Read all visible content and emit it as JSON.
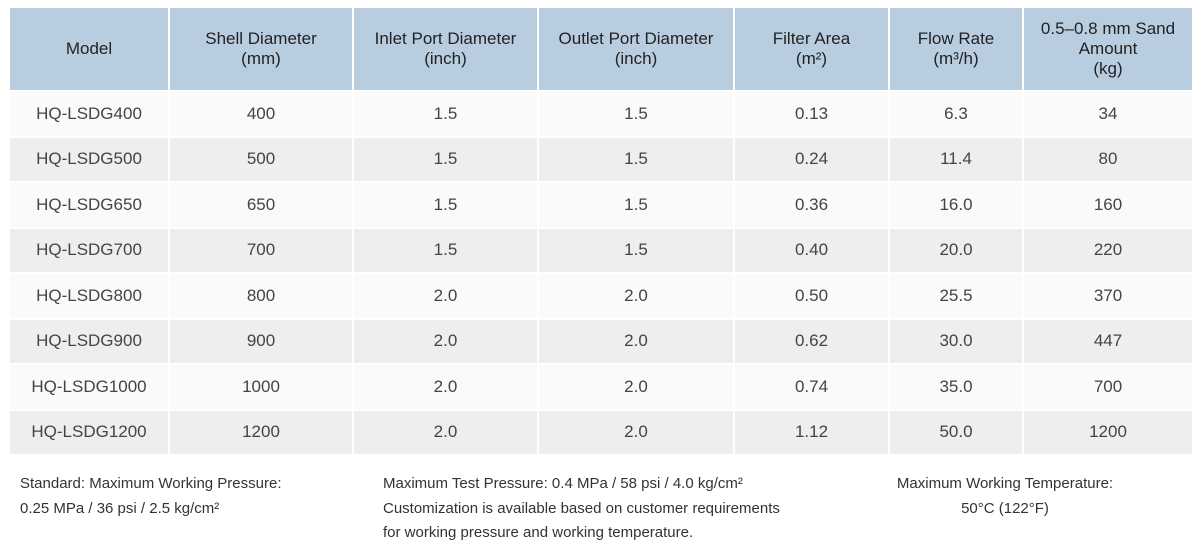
{
  "table": {
    "header": [
      [
        "Model"
      ],
      [
        "Shell Diameter",
        "(mm)"
      ],
      [
        "Inlet Port Diameter",
        "(inch)"
      ],
      [
        "Outlet Port Diameter",
        "(inch)"
      ],
      [
        "Filter Area",
        "(m²)"
      ],
      [
        "Flow Rate",
        "(m³/h)"
      ],
      [
        "0.5–0.8 mm Sand",
        "Amount",
        "(kg)"
      ]
    ],
    "rows": [
      [
        "HQ-LSDG400",
        "400",
        "1.5",
        "1.5",
        "0.13",
        "6.3",
        "34"
      ],
      [
        "HQ-LSDG500",
        "500",
        "1.5",
        "1.5",
        "0.24",
        "11.4",
        "80"
      ],
      [
        "HQ-LSDG650",
        "650",
        "1.5",
        "1.5",
        "0.36",
        "16.0",
        "160"
      ],
      [
        "HQ-LSDG700",
        "700",
        "1.5",
        "1.5",
        "0.40",
        "20.0",
        "220"
      ],
      [
        "HQ-LSDG800",
        "800",
        "2.0",
        "2.0",
        "0.50",
        "25.5",
        "370"
      ],
      [
        "HQ-LSDG900",
        "900",
        "2.0",
        "2.0",
        "0.62",
        "30.0",
        "447"
      ],
      [
        "HQ-LSDG1000",
        "1000",
        "2.0",
        "2.0",
        "0.74",
        "35.0",
        "700"
      ],
      [
        "HQ-LSDG1200",
        "1200",
        "2.0",
        "2.0",
        "1.12",
        "50.0",
        "1200"
      ]
    ]
  },
  "footer": {
    "notes": [
      [
        "Standard: Maximum Working Pressure:",
        "0.25 MPa / 36 psi / 2.5 kg/cm²"
      ],
      [
        "Maximum Test Pressure: 0.4 MPa / 58 psi / 4.0 kg/cm²",
        "Customization is available based on customer requirements",
        "for working pressure and working temperature."
      ],
      [
        "Maximum Working Temperature:",
        "50°C (122°F)"
      ]
    ]
  }
}
